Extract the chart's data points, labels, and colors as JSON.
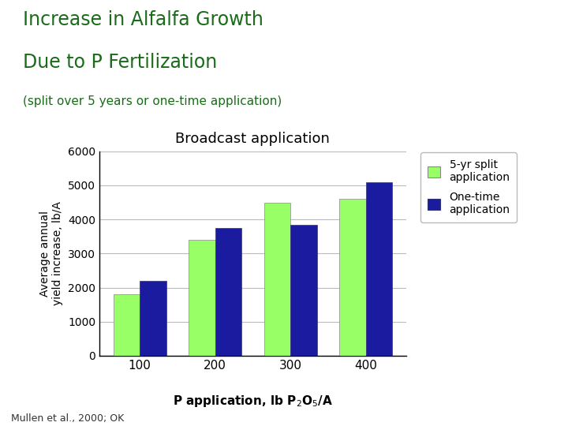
{
  "title_line1": "Increase in Alfalfa Growth",
  "title_line2": "Due to P Fertilization",
  "subtitle": "(split over 5 years or one-time application)",
  "chart_title": "Broadcast application",
  "ylabel": "Average annual\nyield increase, lb/A",
  "categories": [
    100,
    200,
    300,
    400
  ],
  "series1_label": "5-yr split\napplication",
  "series2_label": "One-time\napplication",
  "series1_values": [
    1800,
    3400,
    4500,
    4600
  ],
  "series2_values": [
    2200,
    3750,
    3850,
    5100
  ],
  "series1_color": "#99FF66",
  "series2_color": "#1B1B9F",
  "ylim": [
    0,
    6000
  ],
  "yticks": [
    0,
    1000,
    2000,
    3000,
    4000,
    5000,
    6000
  ],
  "bg_color": "#FFFFFF",
  "plot_bg_color": "#FFFFFF",
  "grid_color": "#BBBBBB",
  "footer": "Mullen et al., 2000; OK",
  "title_color": "#1A6B1A",
  "subtitle_color": "#1A6B1A"
}
